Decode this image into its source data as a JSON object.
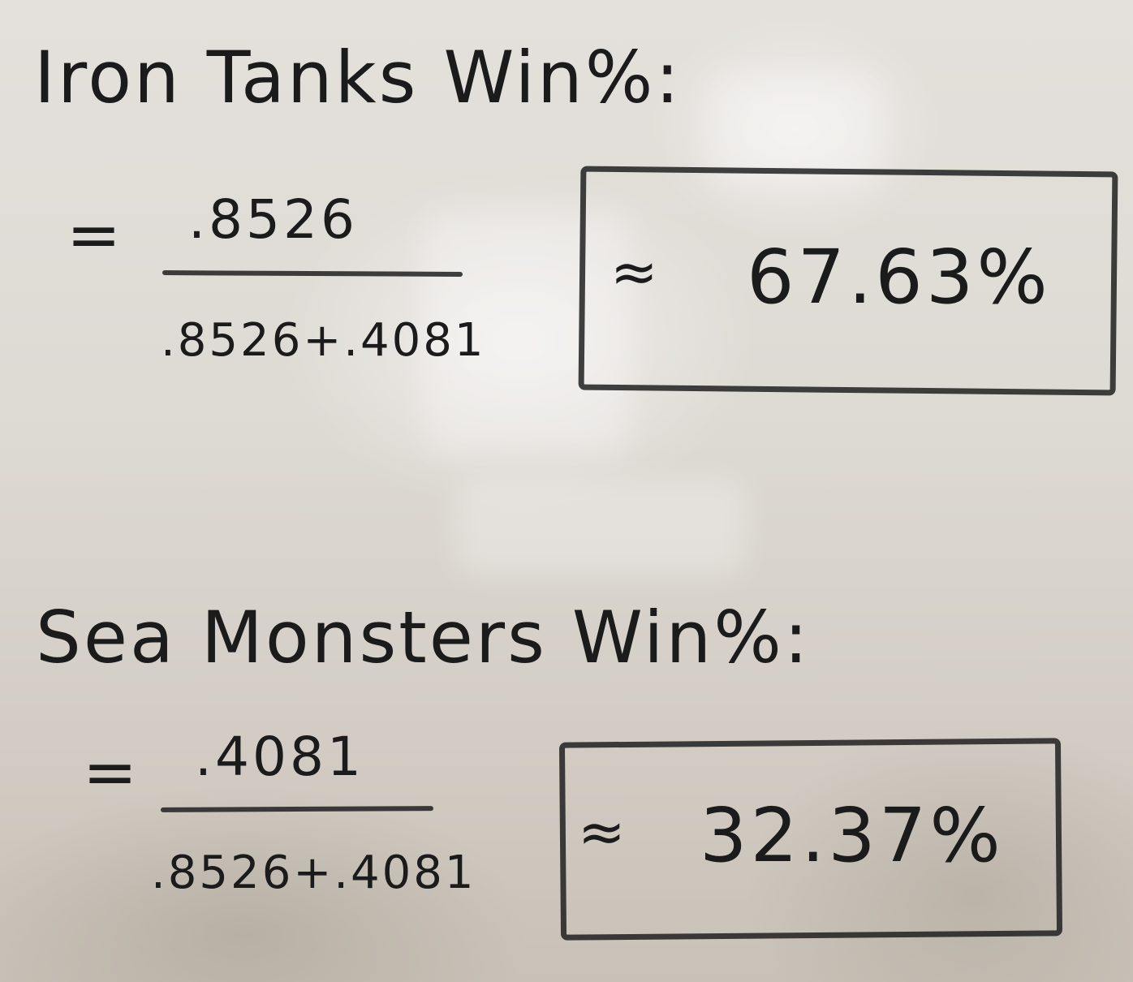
{
  "iron": {
    "heading": "Iron Tanks Win%:",
    "equals": "=",
    "numerator": ".8526",
    "denominator": ".8526+.4081",
    "approx": "≈",
    "result": "67.63%"
  },
  "sea": {
    "heading": "Sea Monsters Win%:",
    "equals": "=",
    "numerator": ".4081",
    "denominator": ".8526+.4081",
    "approx": "≈",
    "result": "32.37%"
  }
}
